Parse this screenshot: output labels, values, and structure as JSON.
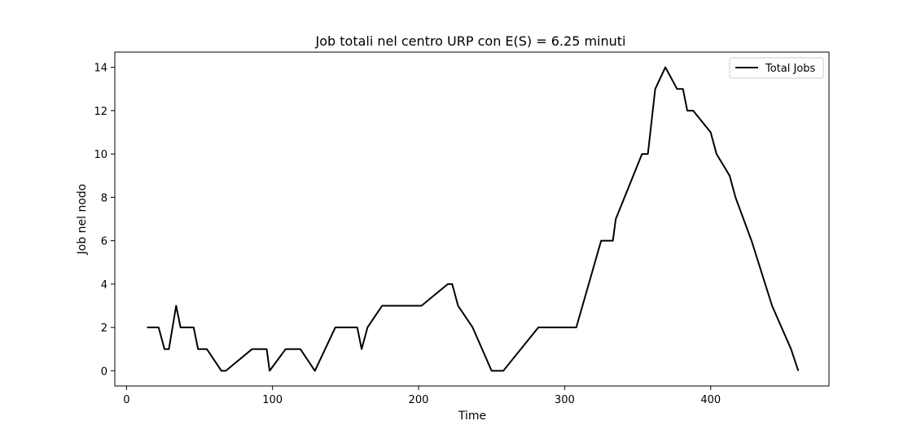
{
  "chart_data": {
    "type": "line",
    "title": "Job totali nel centro URP con E(S) = 6.25 minuti",
    "xlabel": "Time",
    "ylabel": "Job nel nodo",
    "xlim": [
      -8,
      481
    ],
    "ylim": [
      -0.7,
      14.7
    ],
    "xticks": [
      0,
      100,
      200,
      300,
      400
    ],
    "yticks": [
      0,
      2,
      4,
      6,
      8,
      10,
      12,
      14
    ],
    "grid": false,
    "legend_position": "top-right",
    "series": [
      {
        "name": "Total Jobs",
        "color": "#000000",
        "x": [
          14,
          22,
          26,
          29,
          34,
          37,
          46,
          49,
          55,
          65,
          68,
          86,
          96,
          98,
          109,
          119,
          129,
          143,
          158,
          161,
          165,
          175,
          202,
          220,
          223,
          227,
          237,
          250,
          258,
          282,
          308,
          325,
          333,
          335,
          353,
          357,
          362,
          369,
          377,
          381,
          384,
          388,
          400,
          404,
          413,
          417,
          428,
          442,
          455,
          460
        ],
        "y": [
          2,
          2,
          1,
          1,
          3,
          2,
          2,
          1,
          1,
          0,
          0,
          1,
          1,
          0,
          1,
          1,
          0,
          2,
          2,
          1,
          2,
          3,
          3,
          4,
          4,
          3,
          2,
          0,
          0,
          2,
          2,
          6,
          6,
          7,
          10,
          10,
          13,
          14,
          13,
          13,
          12,
          12,
          11,
          10,
          9,
          8,
          6,
          3,
          1,
          0
        ]
      }
    ]
  }
}
